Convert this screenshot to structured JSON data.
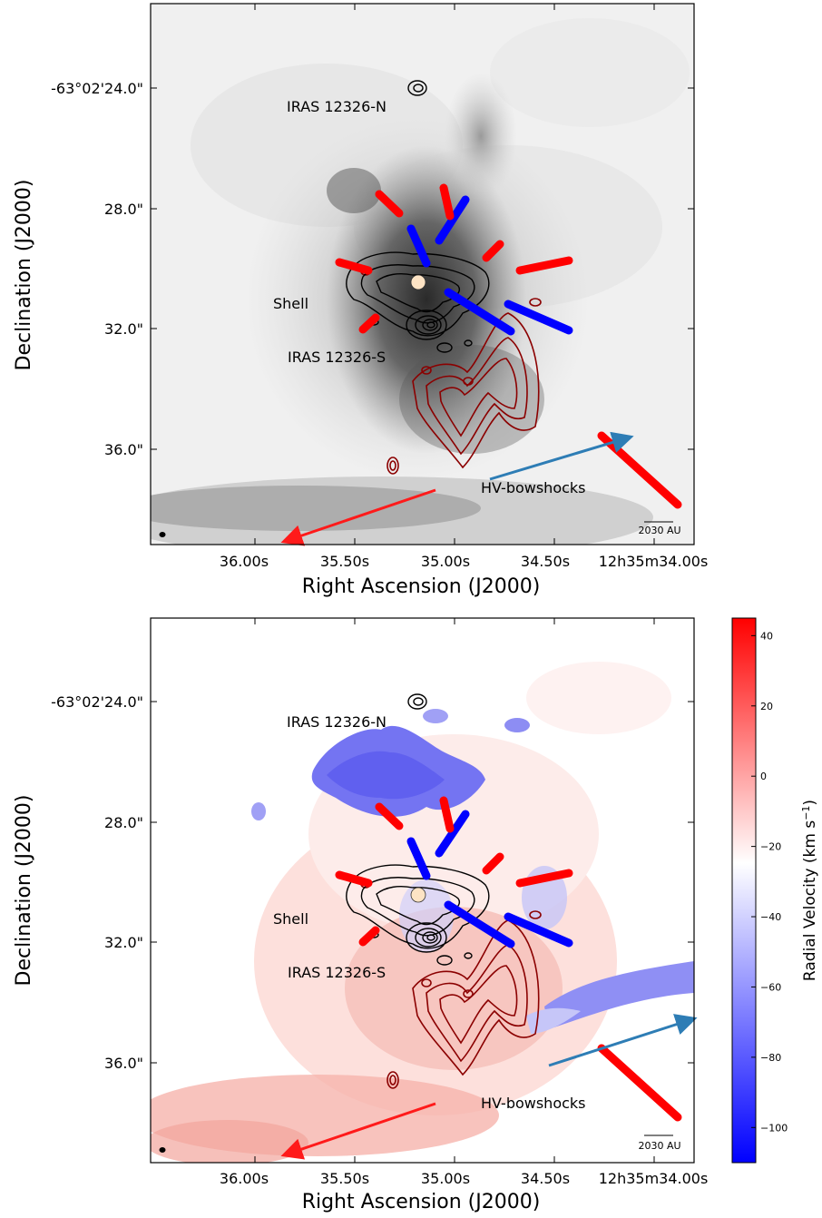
{
  "figure": {
    "panels": [
      {
        "id": "top",
        "xlabel": "Right Ascension (J2000)",
        "ylabel": "Declination (J2000)",
        "xticks": [
          "36.00s",
          "35.50s",
          "35.00s",
          "34.50s",
          "12h35m34.00s"
        ],
        "yticks": [
          "-63°02'24.0\"",
          "28.0\"",
          "32.0\"",
          "36.0\""
        ],
        "annotations": {
          "north": "IRAS 12326-N",
          "shell": "Shell",
          "south": "IRAS 12326-S",
          "bowshocks": "HV-bowshocks"
        },
        "scalebar": "2030 AU"
      },
      {
        "id": "bottom",
        "xlabel": "Right Ascension (J2000)",
        "ylabel": "Declination (J2000)",
        "xticks": [
          "36.00s",
          "35.50s",
          "35.00s",
          "34.50s",
          "12h35m34.00s"
        ],
        "yticks": [
          "-63°02'24.0\"",
          "28.0\"",
          "32.0\"",
          "36.0\""
        ],
        "annotations": {
          "north": "IRAS 12326-N",
          "shell": "Shell",
          "south": "IRAS 12326-S",
          "bowshocks": "HV-bowshocks"
        },
        "scalebar": "2030 AU",
        "colorbar": {
          "label": "Radial Velocity (km s",
          "label_sup": "−1",
          "label_end": ")",
          "ticks": [
            "40",
            "20",
            "0",
            "−20",
            "−40",
            "−60",
            "−80",
            "−100"
          ],
          "range": [
            -110,
            45
          ],
          "colors": [
            "#0000ff",
            "#ffffff",
            "#ff0000"
          ]
        }
      }
    ]
  }
}
